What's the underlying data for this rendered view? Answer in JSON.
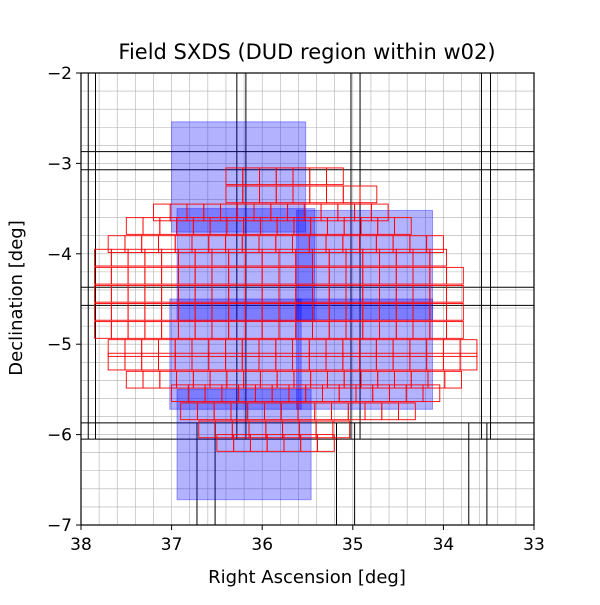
{
  "chart_data": {
    "type": "scatter",
    "title": "Field SXDS (DUD region within w02)",
    "xlabel": "Right Ascension [deg]",
    "ylabel": "Declination [deg]",
    "xlim": [
      38,
      33
    ],
    "ylim": [
      -7,
      -2
    ],
    "x_ticks": [
      38,
      37,
      36,
      35,
      34,
      33
    ],
    "x_tick_labels": [
      "38",
      "37",
      "36",
      "35",
      "34",
      "33"
    ],
    "y_ticks": [
      -2,
      -3,
      -4,
      -5,
      -6,
      -7
    ],
    "y_tick_labels": [
      "−2",
      "−3",
      "−4",
      "−5",
      "−6",
      "−7"
    ],
    "grid": true,
    "fine_grid_step_deg": 0.2,
    "layers": {
      "black_patches": {
        "color": "#000000",
        "ra_boundaries": [
          37.92,
          37.84,
          36.28,
          36.18,
          35.02,
          34.92,
          33.58,
          33.48
        ],
        "dec_boundaries": [
          -2.87,
          -3.07,
          -4.37,
          -4.57,
          -5.87,
          -6.05
        ],
        "lower_ra_boundaries": [
          36.72,
          36.52,
          35.18,
          34.98,
          33.72,
          33.52
        ],
        "lower_dec_top": -5.87
      },
      "blue_pointings": {
        "color": "#0000ff",
        "rects": [
          {
            "ra_min": 35.52,
            "ra_max": 37.0,
            "dec_min": -3.76,
            "dec_max": -2.54
          },
          {
            "ra_min": 34.12,
            "ra_max": 35.62,
            "dec_min": -4.73,
            "dec_max": -3.52
          },
          {
            "ra_min": 35.42,
            "ra_max": 36.94,
            "dec_min": -4.74,
            "dec_max": -3.5
          },
          {
            "ra_min": 35.57,
            "ra_max": 37.02,
            "dec_min": -5.72,
            "dec_max": -4.5
          },
          {
            "ra_min": 34.12,
            "ra_max": 35.62,
            "dec_min": -5.72,
            "dec_max": -4.5
          },
          {
            "ra_min": 35.46,
            "ra_max": 36.94,
            "dec_min": -6.72,
            "dec_max": -5.5
          }
        ]
      },
      "red_patches": {
        "color": "#ff0000",
        "cell_size_deg": 0.185,
        "rows": [
          {
            "dec_top": -3.05,
            "ra_left": 36.4,
            "ra_right": 35.0
          },
          {
            "dec_top": -3.25,
            "ra_left": 36.4,
            "ra_right": 34.7
          },
          {
            "dec_top": -3.45,
            "ra_left": 37.2,
            "ra_right": 34.5
          },
          {
            "dec_top": -3.6,
            "ra_left": 37.5,
            "ra_right": 34.2
          },
          {
            "dec_top": -3.8,
            "ra_left": 37.7,
            "ra_right": 34.0
          },
          {
            "dec_top": -3.95,
            "ra_left": 37.85,
            "ra_right": 33.8
          },
          {
            "dec_top": -4.15,
            "ra_left": 37.85,
            "ra_right": 33.6
          },
          {
            "dec_top": -4.35,
            "ra_left": 37.85,
            "ra_right": 33.6
          },
          {
            "dec_top": -4.55,
            "ra_left": 37.85,
            "ra_right": 33.6
          },
          {
            "dec_top": -4.75,
            "ra_left": 37.85,
            "ra_right": 33.6
          },
          {
            "dec_top": -4.95,
            "ra_left": 37.7,
            "ra_right": 33.6
          },
          {
            "dec_top": -5.1,
            "ra_left": 37.7,
            "ra_right": 33.6
          },
          {
            "dec_top": -5.3,
            "ra_left": 37.5,
            "ra_right": 33.8
          },
          {
            "dec_top": -5.45,
            "ra_left": 37.0,
            "ra_right": 34.0
          },
          {
            "dec_top": -5.65,
            "ra_left": 36.9,
            "ra_right": 34.2
          },
          {
            "dec_top": -5.85,
            "ra_left": 36.7,
            "ra_right": 35.0
          },
          {
            "dec_top": -6.0,
            "ra_left": 36.5,
            "ra_right": 35.2
          }
        ]
      }
    }
  }
}
